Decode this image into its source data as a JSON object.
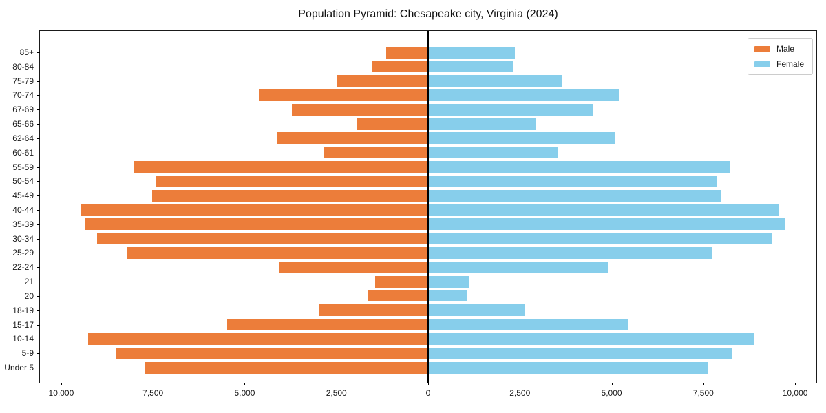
{
  "title": "Population Pyramid: Chesapeake city, Virginia (2024)",
  "legend": {
    "male_label": "Male",
    "female_label": "Female"
  },
  "colors": {
    "male": "#EC7D3A",
    "female": "#87CEEB",
    "axis": "#1a1a1a",
    "center_line": "#000000"
  },
  "chart_data": {
    "type": "bar",
    "subtype": "population-pyramid",
    "orientation": "horizontal",
    "title": "Population Pyramid: Chesapeake city, Virginia (2024)",
    "categories": [
      "85+",
      "80-84",
      "75-79",
      "70-74",
      "67-69",
      "65-66",
      "62-64",
      "60-61",
      "55-59",
      "50-54",
      "45-49",
      "40-44",
      "35-39",
      "30-34",
      "25-29",
      "22-24",
      "21",
      "20",
      "18-19",
      "15-17",
      "10-14",
      "5-9",
      "Under 5"
    ],
    "series": [
      {
        "name": "Male",
        "side": "left",
        "color": "#EC7D3A",
        "values": [
          1140,
          1520,
          2470,
          4620,
          3720,
          1940,
          4100,
          2840,
          8020,
          7420,
          7520,
          9460,
          9370,
          9030,
          8190,
          4050,
          1440,
          1640,
          2980,
          5480,
          9270,
          8490,
          7730
        ]
      },
      {
        "name": "Female",
        "side": "right",
        "color": "#87CEEB",
        "values": [
          2370,
          2310,
          3650,
          5200,
          4480,
          2920,
          5080,
          3540,
          8210,
          7870,
          7980,
          9540,
          9730,
          9370,
          7730,
          4910,
          1100,
          1070,
          2640,
          5450,
          8900,
          8290,
          7630
        ]
      }
    ],
    "x_axis": {
      "tick_values": [
        -10000,
        -7500,
        -5000,
        -2500,
        0,
        2500,
        5000,
        7500,
        10000
      ],
      "tick_labels": [
        "10,000",
        "7,500",
        "5,000",
        "2,500",
        "0",
        "2,500",
        "5,000",
        "7,500",
        "10,000"
      ],
      "xlim": [
        -10580,
        10580
      ]
    },
    "ylabel": "",
    "xlabel": "",
    "grid": false,
    "legend_position": "upper right"
  }
}
